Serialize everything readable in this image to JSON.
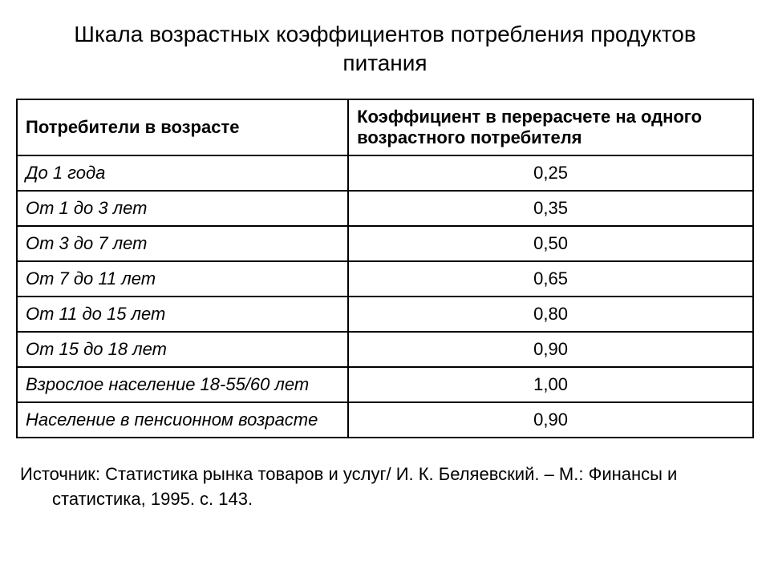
{
  "title": "Шкала возрастных коэффициентов потребления продуктов питания",
  "table": {
    "columns": [
      "Потребители в возрасте",
      "Коэффициент в перерасчете на одного возрастного потребителя"
    ],
    "rows": [
      {
        "age": "До 1 года",
        "coef": "0,25"
      },
      {
        "age": "От 1 до 3 лет",
        "coef": "0,35"
      },
      {
        "age": "От 3 до 7 лет",
        "coef": "0,50"
      },
      {
        "age": "От 7 до 11 лет",
        "coef": "0,65"
      },
      {
        "age": "От 11 до 15 лет",
        "coef": "0,80"
      },
      {
        "age": "От 15 до 18 лет",
        "coef": "0,90"
      },
      {
        "age": "Взрослое население 18-55/60 лет",
        "coef": "1,00"
      },
      {
        "age": "Население в пенсионном возрасте",
        "coef": "0,90"
      }
    ],
    "column_widths": [
      "45%",
      "55%"
    ],
    "border_color": "#000000",
    "border_width": 2,
    "header_font_weight": "bold",
    "row_age_font_style": "italic",
    "coef_align": "center",
    "cell_fontsize": 22
  },
  "source": "Источник: Статистика рынка товаров и услуг/ И. К. Беляевский. – М.: Финансы и статистика, 1995. с. 143.",
  "style": {
    "background_color": "#ffffff",
    "text_color": "#000000",
    "title_fontsize": 28,
    "source_fontsize": 22,
    "font_family": "Arial"
  }
}
